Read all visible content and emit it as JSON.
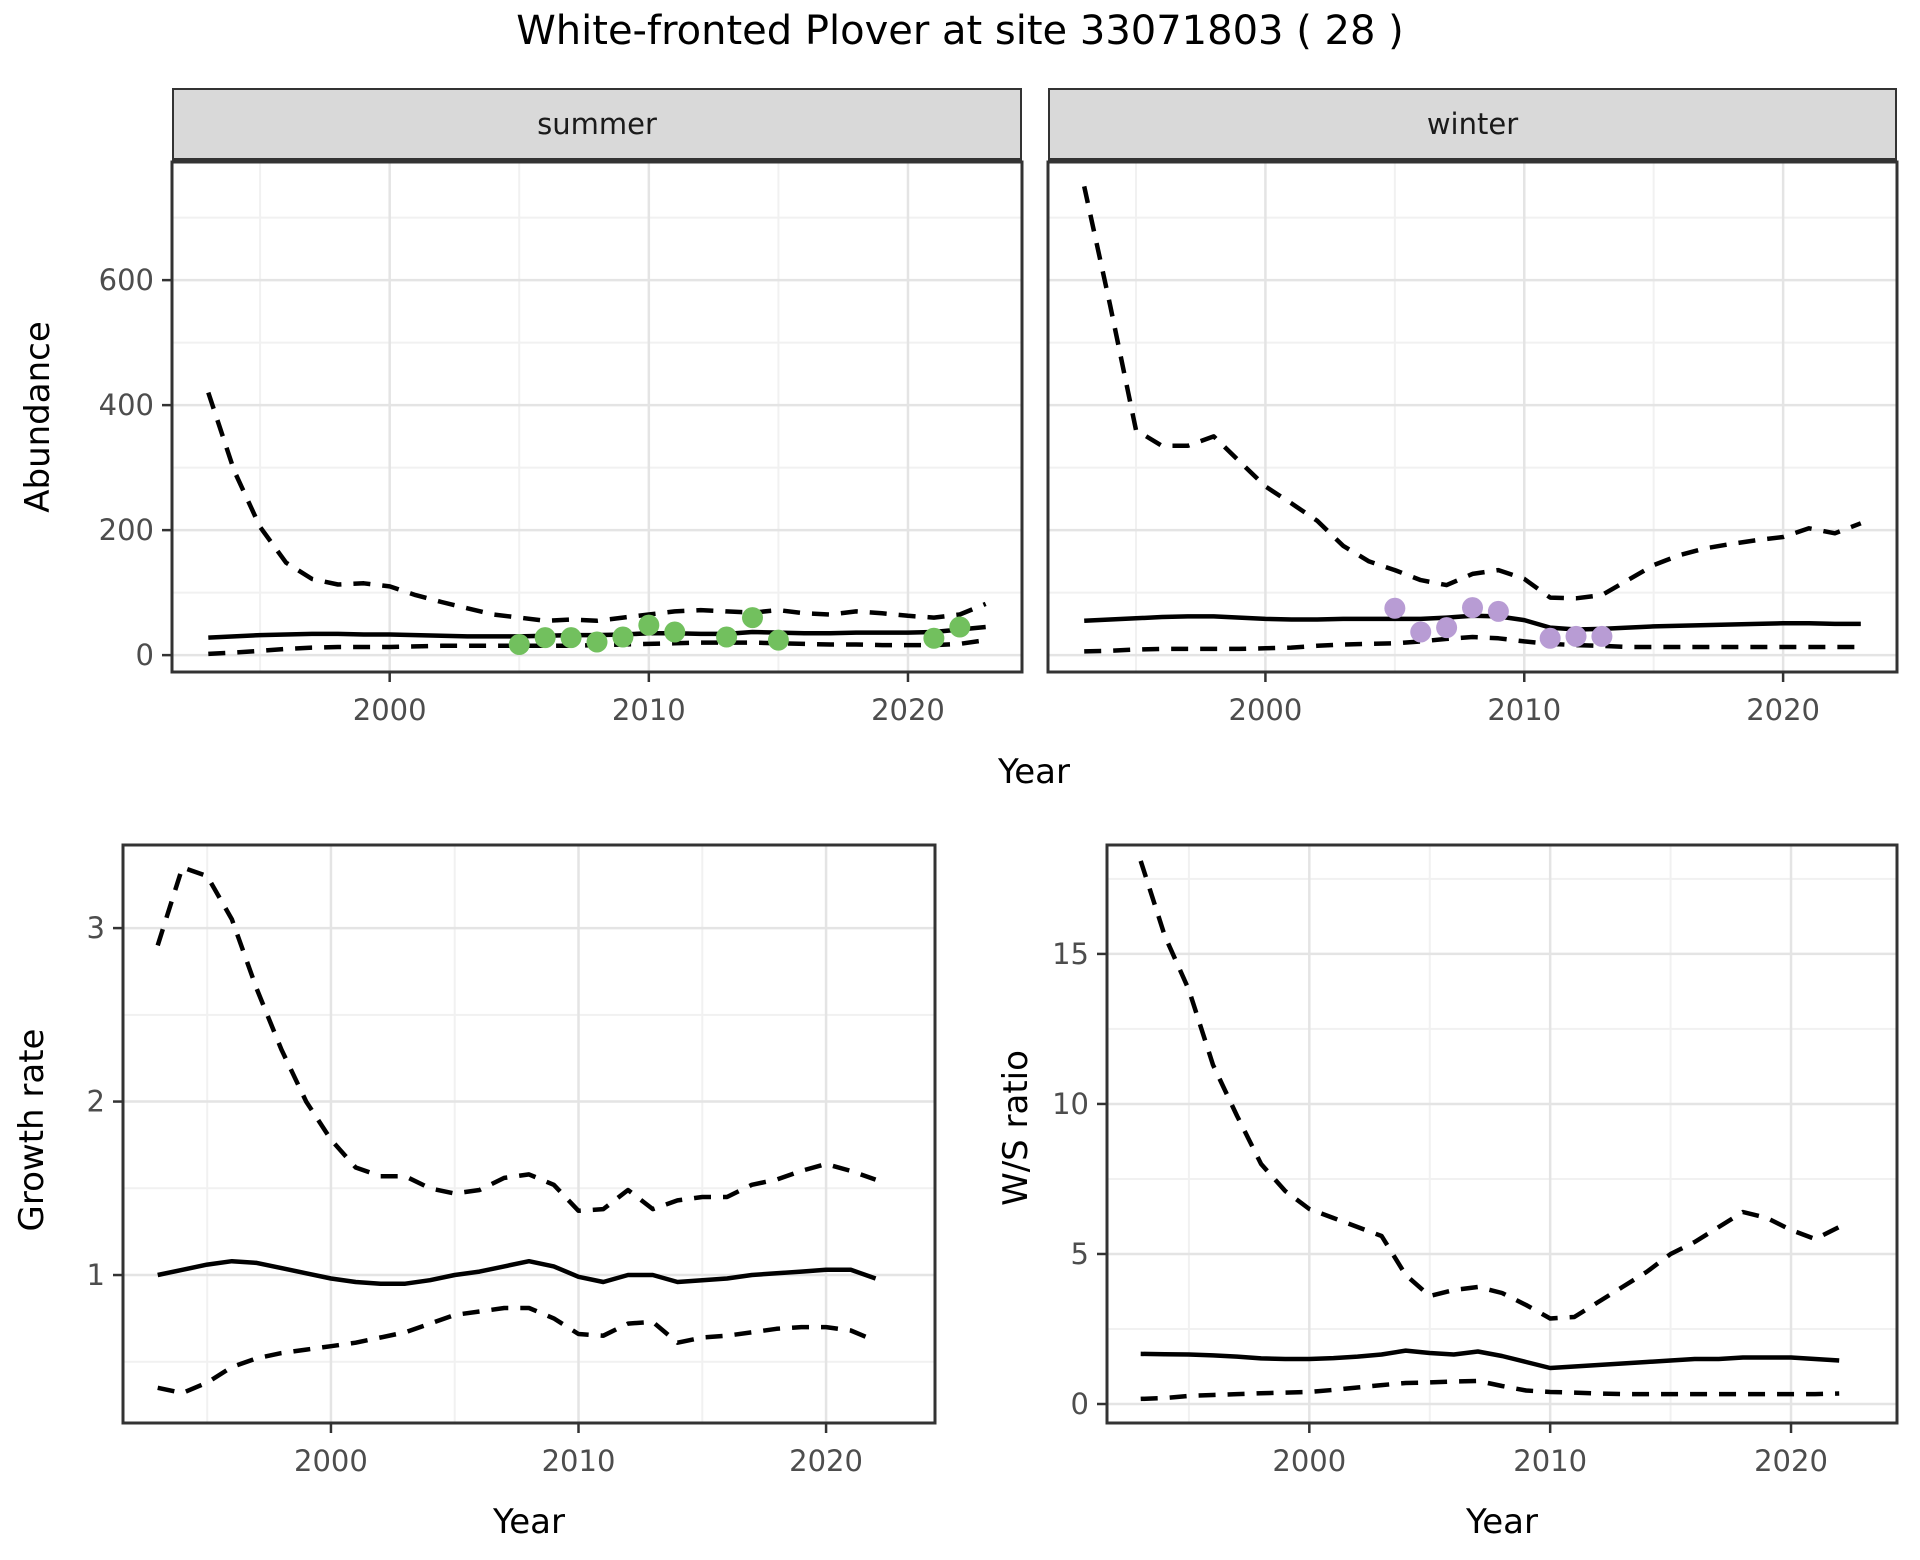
{
  "title": "White-fronted Plover at site 33071803 ( 28 )",
  "colors": {
    "summer_point": "#72C05E",
    "winter_point": "#B89CD4",
    "line": "#000000",
    "grid_major": "#E4E4E4",
    "grid_minor": "#F1F1F1",
    "panel_border": "#333333",
    "strip_fill": "#D9D9D9",
    "tick_text": "#4D4D4D"
  },
  "chart_data": [
    {
      "id": "abundance-summer",
      "type": "line",
      "facet_label": "summer",
      "xlabel": "Year",
      "ylabel": "Abundance",
      "legend_position": "none",
      "grid": true,
      "xlim": [
        1991.6,
        2024.4
      ],
      "ylim": [
        -27,
        789
      ],
      "x_major": [
        2000,
        2010,
        2020
      ],
      "x_major_labels": [
        "2000",
        "2010",
        "2020"
      ],
      "x_minor": [
        1995,
        2005,
        2015
      ],
      "y_major": [
        0,
        200,
        400,
        600
      ],
      "y_major_labels": [
        "0",
        "200",
        "400",
        "600"
      ],
      "y_minor": [
        100,
        300,
        500,
        700
      ],
      "show_y_labels": true,
      "point_color": "#72C05E",
      "series": {
        "upper_ci": {
          "name": "upper 95% CI",
          "style": "dashed",
          "x": [
            1993,
            1994,
            1995,
            1996,
            1997,
            1998,
            1999,
            2000,
            2001,
            2002,
            2003,
            2004,
            2005,
            2006,
            2007,
            2008,
            2009,
            2010,
            2011,
            2012,
            2013,
            2014,
            2015,
            2016,
            2017,
            2018,
            2019,
            2020,
            2021,
            2022,
            2023
          ],
          "y": [
            420,
            295,
            205,
            148,
            122,
            113,
            115,
            110,
            96,
            85,
            75,
            65,
            60,
            55,
            57,
            55,
            60,
            65,
            70,
            72,
            70,
            68,
            72,
            67,
            65,
            70,
            67,
            63,
            60,
            65,
            82
          ]
        },
        "mean": {
          "name": "modelled mean",
          "style": "solid",
          "x": [
            1993,
            1994,
            1995,
            1996,
            1997,
            1998,
            1999,
            2000,
            2001,
            2002,
            2003,
            2004,
            2005,
            2006,
            2007,
            2008,
            2009,
            2010,
            2011,
            2012,
            2013,
            2014,
            2015,
            2016,
            2017,
            2018,
            2019,
            2020,
            2021,
            2022,
            2023
          ],
          "y": [
            28,
            30,
            32,
            33,
            34,
            34,
            33,
            33,
            32,
            31,
            30,
            30,
            30,
            31,
            32,
            32,
            33,
            35,
            35,
            34,
            34,
            37,
            36,
            35,
            35,
            36,
            36,
            36,
            37,
            41,
            45
          ]
        },
        "lower_ci": {
          "name": "lower 95% CI",
          "style": "dashed",
          "x": [
            1993,
            1994,
            1995,
            1996,
            1997,
            1998,
            1999,
            2000,
            2001,
            2002,
            2003,
            2004,
            2005,
            2006,
            2007,
            2008,
            2009,
            2010,
            2011,
            2012,
            2013,
            2014,
            2015,
            2016,
            2017,
            2018,
            2019,
            2020,
            2021,
            2022,
            2023
          ],
          "y": [
            2,
            4,
            7,
            10,
            12,
            13,
            13,
            13,
            14,
            15,
            15,
            15,
            15,
            15,
            15,
            16,
            17,
            18,
            19,
            20,
            20,
            20,
            19,
            18,
            17,
            17,
            16,
            16,
            16,
            18,
            24
          ]
        }
      },
      "points": {
        "name": "observed counts (summer)",
        "x": [
          2005,
          2006,
          2007,
          2008,
          2009,
          2010,
          2011,
          2013,
          2014,
          2015,
          2021,
          2022
        ],
        "y": [
          17,
          28,
          28,
          21,
          29,
          48,
          37,
          29,
          60,
          24,
          27,
          45
        ]
      }
    },
    {
      "id": "abundance-winter",
      "type": "line",
      "facet_label": "winter",
      "xlabel": "Year",
      "ylabel": "Abundance",
      "legend_position": "none",
      "grid": true,
      "xlim": [
        1991.6,
        2024.4
      ],
      "ylim": [
        -27,
        789
      ],
      "x_major": [
        2000,
        2010,
        2020
      ],
      "x_major_labels": [
        "2000",
        "2010",
        "2020"
      ],
      "x_minor": [
        1995,
        2005,
        2015
      ],
      "y_major": [
        0,
        200,
        400,
        600
      ],
      "y_major_labels": [
        "0",
        "200",
        "400",
        "600"
      ],
      "y_minor": [
        100,
        300,
        500,
        700
      ],
      "show_y_labels": false,
      "point_color": "#B89CD4",
      "series": {
        "upper_ci": {
          "name": "upper 95% CI",
          "style": "dashed",
          "x": [
            1993,
            1994,
            1995,
            1996,
            1997,
            1998,
            1999,
            2000,
            2001,
            2002,
            2003,
            2004,
            2005,
            2006,
            2007,
            2008,
            2009,
            2010,
            2011,
            2012,
            2013,
            2014,
            2015,
            2016,
            2017,
            2018,
            2019,
            2020,
            2021,
            2022,
            2023
          ],
          "y": [
            750,
            560,
            360,
            335,
            335,
            350,
            310,
            270,
            243,
            215,
            175,
            150,
            136,
            120,
            112,
            130,
            136,
            122,
            92,
            91,
            96,
            120,
            144,
            160,
            171,
            178,
            184,
            189,
            203,
            195,
            211
          ]
        },
        "mean": {
          "name": "modelled mean",
          "style": "solid",
          "x": [
            1993,
            1994,
            1995,
            1996,
            1997,
            1998,
            1999,
            2000,
            2001,
            2002,
            2003,
            2004,
            2005,
            2006,
            2007,
            2008,
            2009,
            2010,
            2011,
            2012,
            2013,
            2014,
            2015,
            2016,
            2017,
            2018,
            2019,
            2020,
            2021,
            2022,
            2023
          ],
          "y": [
            55,
            57,
            59,
            61,
            62,
            62,
            60,
            58,
            57,
            57,
            58,
            58,
            58,
            58,
            60,
            63,
            62,
            56,
            44,
            41,
            42,
            44,
            46,
            47,
            48,
            49,
            50,
            51,
            51,
            50,
            50
          ]
        },
        "lower_ci": {
          "name": "lower 95% CI",
          "style": "dashed",
          "x": [
            1993,
            1994,
            1995,
            1996,
            1997,
            1998,
            1999,
            2000,
            2001,
            2002,
            2003,
            2004,
            2005,
            2006,
            2007,
            2008,
            2009,
            2010,
            2011,
            2012,
            2013,
            2014,
            2015,
            2016,
            2017,
            2018,
            2019,
            2020,
            2021,
            2022,
            2023
          ],
          "y": [
            6,
            7,
            9,
            10,
            10,
            10,
            10,
            11,
            12,
            15,
            17,
            18,
            19,
            22,
            26,
            29,
            27,
            22,
            18,
            16,
            15,
            13,
            13,
            13,
            13,
            13,
            13,
            13,
            13,
            13,
            13
          ]
        }
      },
      "points": {
        "name": "observed counts (winter)",
        "x": [
          2005,
          2006,
          2007,
          2008,
          2009,
          2011,
          2012,
          2013
        ],
        "y": [
          75,
          37,
          44,
          76,
          70,
          27,
          30,
          30
        ]
      }
    },
    {
      "id": "growth-rate",
      "type": "line",
      "facet_label": "",
      "xlabel": "Year",
      "ylabel": "Growth rate",
      "legend_position": "none",
      "grid": true,
      "xlim": [
        1991.6,
        2024.4
      ],
      "ylim": [
        0.147,
        3.479
      ],
      "x_major": [
        2000,
        2010,
        2020
      ],
      "x_major_labels": [
        "2000",
        "2010",
        "2020"
      ],
      "x_minor": [
        1995,
        2005,
        2015
      ],
      "y_major": [
        1,
        2,
        3
      ],
      "y_major_labels": [
        "1",
        "2",
        "3"
      ],
      "y_minor": [
        0.5,
        1.5,
        2.5
      ],
      "show_y_labels": true,
      "point_color": null,
      "series": {
        "upper_ci": {
          "name": "upper 95% CI",
          "style": "dashed",
          "x": [
            1993,
            1994,
            1995,
            1996,
            1997,
            1998,
            1999,
            2000,
            2001,
            2002,
            2003,
            2004,
            2005,
            2006,
            2007,
            2008,
            2009,
            2010,
            2011,
            2012,
            2013,
            2014,
            2015,
            2016,
            2017,
            2018,
            2019,
            2020,
            2021,
            2022
          ],
          "y": [
            2.9,
            3.35,
            3.3,
            3.05,
            2.65,
            2.3,
            2.0,
            1.78,
            1.62,
            1.57,
            1.57,
            1.5,
            1.47,
            1.49,
            1.56,
            1.58,
            1.52,
            1.37,
            1.38,
            1.49,
            1.38,
            1.43,
            1.45,
            1.45,
            1.52,
            1.55,
            1.6,
            1.64,
            1.6,
            1.55
          ]
        },
        "mean": {
          "name": "modelled growth rate",
          "style": "solid",
          "x": [
            1993,
            1994,
            1995,
            1996,
            1997,
            1998,
            1999,
            2000,
            2001,
            2002,
            2003,
            2004,
            2005,
            2006,
            2007,
            2008,
            2009,
            2010,
            2011,
            2012,
            2013,
            2014,
            2015,
            2016,
            2017,
            2018,
            2019,
            2020,
            2021,
            2022
          ],
          "y": [
            1.0,
            1.03,
            1.06,
            1.08,
            1.07,
            1.04,
            1.01,
            0.98,
            0.96,
            0.95,
            0.95,
            0.97,
            1.0,
            1.02,
            1.05,
            1.08,
            1.05,
            0.99,
            0.96,
            1.0,
            1.0,
            0.96,
            0.97,
            0.98,
            1.0,
            1.01,
            1.02,
            1.03,
            1.03,
            0.98
          ]
        },
        "lower_ci": {
          "name": "lower 95% CI",
          "style": "dashed",
          "x": [
            1993,
            1994,
            1995,
            1996,
            1997,
            1998,
            1999,
            2000,
            2001,
            2002,
            2003,
            2004,
            2005,
            2006,
            2007,
            2008,
            2009,
            2010,
            2011,
            2012,
            2013,
            2014,
            2015,
            2016,
            2017,
            2018,
            2019,
            2020,
            2021,
            2022
          ],
          "y": [
            0.35,
            0.32,
            0.38,
            0.47,
            0.52,
            0.55,
            0.57,
            0.59,
            0.61,
            0.64,
            0.67,
            0.72,
            0.77,
            0.79,
            0.81,
            0.81,
            0.75,
            0.66,
            0.65,
            0.72,
            0.73,
            0.61,
            0.64,
            0.65,
            0.67,
            0.69,
            0.7,
            0.7,
            0.68,
            0.62
          ]
        }
      },
      "points": null
    },
    {
      "id": "ws-ratio",
      "type": "line",
      "facet_label": "",
      "xlabel": "Year",
      "ylabel": "W/S ratio",
      "legend_position": "none",
      "grid": true,
      "xlim": [
        1991.6,
        2024.4
      ],
      "ylim": [
        -0.633,
        18.63
      ],
      "x_major": [
        2000,
        2010,
        2020
      ],
      "x_major_labels": [
        "2000",
        "2010",
        "2020"
      ],
      "x_minor": [
        1995,
        2005,
        2015
      ],
      "y_major": [
        0,
        5,
        10,
        15
      ],
      "y_major_labels": [
        "0",
        "5",
        "10",
        "15"
      ],
      "y_minor": [
        2.5,
        7.5,
        12.5,
        17.5
      ],
      "show_y_labels": true,
      "point_color": null,
      "series": {
        "upper_ci": {
          "name": "upper 95% CI",
          "style": "dashed",
          "x": [
            1993,
            1994,
            1995,
            1996,
            1997,
            1998,
            1999,
            2000,
            2001,
            2002,
            2003,
            2004,
            2005,
            2006,
            2007,
            2008,
            2009,
            2010,
            2011,
            2012,
            2013,
            2014,
            2015,
            2016,
            2017,
            2018,
            2019,
            2020,
            2021,
            2022
          ],
          "y": [
            18.1,
            15.6,
            13.8,
            11.3,
            9.6,
            8.0,
            7.1,
            6.5,
            6.2,
            5.9,
            5.6,
            4.3,
            3.6,
            3.8,
            3.9,
            3.7,
            3.3,
            2.85,
            2.9,
            3.4,
            3.9,
            4.4,
            5.0,
            5.4,
            5.9,
            6.4,
            6.2,
            5.8,
            5.5,
            5.9
          ]
        },
        "mean": {
          "name": "modelled W/S ratio",
          "style": "solid",
          "x": [
            1993,
            1994,
            1995,
            1996,
            1997,
            1998,
            1999,
            2000,
            2001,
            2002,
            2003,
            2004,
            2005,
            2006,
            2007,
            2008,
            2009,
            2010,
            2011,
            2012,
            2013,
            2014,
            2015,
            2016,
            2017,
            2018,
            2019,
            2020,
            2021,
            2022
          ],
          "y": [
            1.67,
            1.66,
            1.65,
            1.62,
            1.58,
            1.52,
            1.5,
            1.5,
            1.53,
            1.58,
            1.65,
            1.78,
            1.7,
            1.65,
            1.75,
            1.6,
            1.4,
            1.2,
            1.25,
            1.3,
            1.35,
            1.4,
            1.45,
            1.5,
            1.5,
            1.55,
            1.55,
            1.55,
            1.5,
            1.45
          ]
        },
        "lower_ci": {
          "name": "lower 95% CI",
          "style": "dashed",
          "x": [
            1993,
            1994,
            1995,
            1996,
            1997,
            1998,
            1999,
            2000,
            2001,
            2002,
            2003,
            2004,
            2005,
            2006,
            2007,
            2008,
            2009,
            2010,
            2011,
            2012,
            2013,
            2014,
            2015,
            2016,
            2017,
            2018,
            2019,
            2020,
            2021,
            2022
          ],
          "y": [
            0.17,
            0.2,
            0.27,
            0.3,
            0.33,
            0.36,
            0.38,
            0.4,
            0.47,
            0.55,
            0.63,
            0.7,
            0.72,
            0.75,
            0.77,
            0.6,
            0.45,
            0.4,
            0.38,
            0.35,
            0.33,
            0.33,
            0.33,
            0.33,
            0.33,
            0.33,
            0.33,
            0.33,
            0.33,
            0.35
          ]
        }
      },
      "points": null
    }
  ]
}
